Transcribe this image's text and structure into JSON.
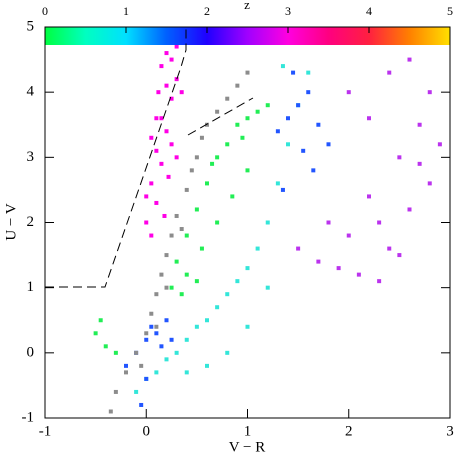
{
  "chart_data": {
    "type": "scatter",
    "x_label": "V − R",
    "y_label": "U − V",
    "xlim": [
      -1,
      3
    ],
    "ylim": [
      -1,
      5
    ],
    "xticks": [
      -1,
      0,
      1,
      2,
      3
    ],
    "yticks": [
      -1,
      0,
      1,
      2,
      3,
      4,
      5
    ],
    "colorbar": {
      "label": "z",
      "lim": [
        0,
        5
      ],
      "ticks": [
        0,
        1,
        2,
        3,
        4,
        5
      ],
      "colors": [
        "#00ff40",
        "#00ffc0",
        "#00e0ff",
        "#0060ff",
        "#2000ff",
        "#a000ff",
        "#ff00e0",
        "#ff0080",
        "#ff2040",
        "#ff8000",
        "#ffe000"
      ]
    },
    "series": [
      {
        "color": "#ff00e6",
        "x": [
          0.0,
          0.05,
          0.1,
          0.15,
          0.2,
          0.25,
          0.3,
          0.05,
          0.1,
          0.15,
          0.2,
          0.25,
          0.0,
          0.1,
          0.2,
          0.3,
          0.15,
          0.25,
          0.35,
          0.05,
          0.12,
          0.22,
          0.3,
          0.18
        ],
        "values": [
          2.0,
          2.6,
          3.1,
          3.6,
          4.1,
          4.5,
          4.7,
          1.8,
          2.3,
          2.9,
          3.4,
          3.9,
          2.4,
          3.6,
          4.6,
          4.2,
          4.4,
          3.2,
          4.0,
          3.3,
          4.0,
          2.7,
          3.0,
          2.1
        ]
      },
      {
        "color": "#22ee55",
        "x": [
          0.25,
          0.3,
          0.4,
          0.5,
          0.6,
          0.7,
          0.8,
          0.9,
          1.0,
          1.1,
          1.2,
          0.4,
          0.55,
          0.7,
          0.85,
          1.0,
          0.35,
          0.5,
          -0.5,
          -0.4,
          -0.3,
          -0.45,
          0.65,
          0.95
        ],
        "values": [
          1.0,
          1.4,
          1.8,
          2.2,
          2.6,
          3.0,
          3.2,
          3.5,
          3.6,
          3.7,
          3.8,
          1.2,
          1.6,
          2.0,
          2.4,
          2.8,
          0.9,
          1.1,
          0.3,
          0.1,
          0.0,
          0.5,
          2.9,
          3.3
        ]
      },
      {
        "color": "#33e6d9",
        "x": [
          -0.1,
          0.0,
          0.1,
          0.2,
          0.3,
          0.4,
          0.5,
          0.6,
          0.7,
          0.8,
          0.9,
          1.0,
          1.1,
          1.2,
          1.3,
          1.4,
          1.5,
          1.6,
          0.4,
          0.6,
          0.8,
          1.0,
          1.2,
          1.35
        ],
        "values": [
          -0.6,
          -0.4,
          -0.3,
          -0.1,
          0.0,
          0.2,
          0.4,
          0.5,
          0.7,
          0.9,
          1.1,
          1.3,
          1.6,
          2.0,
          2.6,
          3.2,
          3.8,
          4.3,
          -0.3,
          -0.2,
          0.0,
          0.4,
          1.0,
          4.4
        ]
      },
      {
        "color": "#2255ff",
        "x": [
          -0.2,
          -0.1,
          0.0,
          0.05,
          0.1,
          0.15,
          0.2,
          -0.05,
          0.25,
          0.0,
          1.3,
          1.4,
          1.5,
          1.6,
          1.7,
          1.55,
          1.45,
          1.65,
          1.8,
          1.35
        ],
        "values": [
          -0.2,
          0.0,
          0.2,
          0.4,
          0.3,
          0.1,
          0.5,
          -0.8,
          0.2,
          -0.4,
          3.4,
          3.6,
          3.8,
          4.0,
          3.5,
          3.1,
          4.3,
          2.8,
          3.2,
          2.5
        ]
      },
      {
        "color": "#bb33ee",
        "x": [
          1.5,
          1.7,
          1.9,
          2.0,
          2.1,
          2.2,
          2.3,
          2.4,
          2.5,
          2.6,
          2.7,
          2.8,
          2.9,
          2.0,
          2.2,
          2.4,
          2.6,
          2.8,
          1.8,
          2.5,
          2.3,
          2.7
        ],
        "values": [
          1.6,
          1.4,
          1.3,
          1.8,
          1.2,
          2.4,
          2.0,
          1.6,
          3.0,
          2.2,
          3.5,
          2.6,
          3.2,
          4.0,
          3.6,
          4.3,
          4.5,
          4.0,
          2.0,
          1.5,
          1.1,
          2.9
        ]
      },
      {
        "color": "#8c8c8c",
        "x": [
          -0.35,
          -0.3,
          -0.2,
          -0.1,
          0.0,
          0.05,
          0.1,
          0.15,
          0.2,
          0.25,
          0.3,
          0.4,
          0.45,
          0.5,
          0.55,
          0.6,
          0.7,
          0.8,
          0.9,
          1.0,
          0.35,
          0.1,
          -0.05,
          0.2
        ],
        "values": [
          -0.9,
          -0.6,
          -0.3,
          0.0,
          0.3,
          0.6,
          0.9,
          1.2,
          1.5,
          1.8,
          2.1,
          2.5,
          2.8,
          3.0,
          3.3,
          3.5,
          3.7,
          3.9,
          4.1,
          4.3,
          1.9,
          0.4,
          -0.2,
          1.0
        ]
      }
    ]
  }
}
